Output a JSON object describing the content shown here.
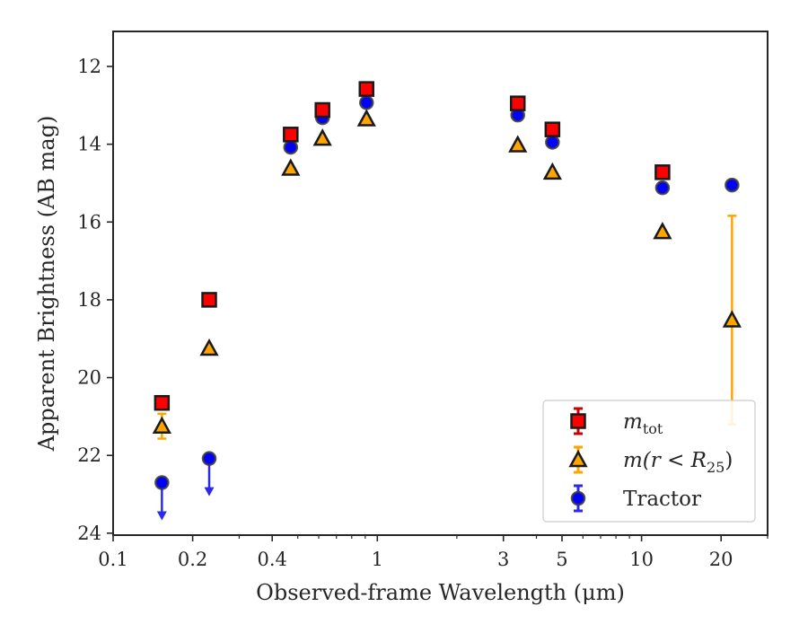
{
  "chart_data": {
    "type": "scatter",
    "xscale": "log",
    "yinverted": true,
    "xlim": [
      0.1,
      30
    ],
    "ylim": [
      24.05,
      11.1
    ],
    "xlabel": "Observed-frame Wavelength (μm)",
    "ylabel": "Apparent Brightness (AB mag)",
    "xticks": [
      {
        "value": 0.1,
        "label": "0.1"
      },
      {
        "value": 0.2,
        "label": "0.2"
      },
      {
        "value": 0.4,
        "label": "0.4"
      },
      {
        "value": 1,
        "label": "1"
      },
      {
        "value": 3,
        "label": "3"
      },
      {
        "value": 5,
        "label": "5"
      },
      {
        "value": 10,
        "label": "10"
      },
      {
        "value": 20,
        "label": "20"
      }
    ],
    "xminor": [
      0.3,
      0.5,
      0.6,
      0.7,
      0.8,
      0.9,
      2,
      4,
      6,
      7,
      8,
      9,
      30
    ],
    "yticks": [
      {
        "value": 12,
        "label": "12"
      },
      {
        "value": 14,
        "label": "14"
      },
      {
        "value": 16,
        "label": "16"
      },
      {
        "value": 18,
        "label": "18"
      },
      {
        "value": 20,
        "label": "20"
      },
      {
        "value": 22,
        "label": "22"
      },
      {
        "value": 24,
        "label": "24"
      }
    ],
    "legend_placement": "lower-right",
    "series": [
      {
        "name": "m_tot",
        "legend_main": "m",
        "legend_sub": "tot",
        "marker": "square",
        "color": "#ff0000",
        "edge": "#1a1a1a",
        "err_color": "#cc0000",
        "points": [
          {
            "x": 0.153,
            "y": 20.65
          },
          {
            "x": 0.231,
            "y": 18.0
          },
          {
            "x": 0.47,
            "y": 13.75
          },
          {
            "x": 0.62,
            "y": 13.12
          },
          {
            "x": 0.91,
            "y": 12.58
          },
          {
            "x": 3.4,
            "y": 12.95
          },
          {
            "x": 4.6,
            "y": 13.62
          },
          {
            "x": 12.0,
            "y": 14.72
          }
        ]
      },
      {
        "name": "m(r < R25)",
        "legend_main": "m(r < R",
        "legend_sub": "25",
        "legend_tail": ")",
        "marker": "triangle",
        "color": "#ffa500",
        "edge": "#1a1a1a",
        "err_color": "#ffa500",
        "points": [
          {
            "x": 0.153,
            "y": 21.25,
            "yerr_low": 0.32,
            "yerr_high": 0.32
          },
          {
            "x": 0.231,
            "y": 19.25
          },
          {
            "x": 0.47,
            "y": 14.62
          },
          {
            "x": 0.62,
            "y": 13.85
          },
          {
            "x": 0.91,
            "y": 13.35
          },
          {
            "x": 3.4,
            "y": 14.02
          },
          {
            "x": 4.6,
            "y": 14.72
          },
          {
            "x": 12.0,
            "y": 16.25
          },
          {
            "x": 22.0,
            "y": 18.52,
            "yerr_low": 2.68,
            "yerr_high": 2.68
          }
        ]
      },
      {
        "name": "Tractor",
        "legend_main": "Tractor",
        "marker": "circle",
        "color": "#0000ff",
        "edge": "#3a3a3a",
        "err_color": "#2a2aee",
        "points": [
          {
            "x": 0.153,
            "y": 22.7,
            "upper_limit": true
          },
          {
            "x": 0.231,
            "y": 22.08,
            "upper_limit": true
          },
          {
            "x": 0.47,
            "y": 14.08
          },
          {
            "x": 0.62,
            "y": 13.32
          },
          {
            "x": 0.91,
            "y": 12.93
          },
          {
            "x": 3.4,
            "y": 13.25
          },
          {
            "x": 4.6,
            "y": 13.95
          },
          {
            "x": 12.0,
            "y": 15.12
          },
          {
            "x": 22.0,
            "y": 15.05
          }
        ]
      }
    ]
  }
}
